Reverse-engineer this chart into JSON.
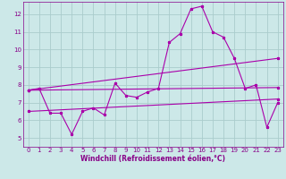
{
  "xlabel": "Windchill (Refroidissement éolien,°C)",
  "xlim": [
    -0.5,
    23.5
  ],
  "ylim": [
    4.5,
    12.7
  ],
  "yticks": [
    5,
    6,
    7,
    8,
    9,
    10,
    11,
    12
  ],
  "xticks": [
    0,
    1,
    2,
    3,
    4,
    5,
    6,
    7,
    8,
    9,
    10,
    11,
    12,
    13,
    14,
    15,
    16,
    17,
    18,
    19,
    20,
    21,
    22,
    23
  ],
  "background_color": "#cce8e8",
  "grid_color": "#aacccc",
  "line_color": "#aa00aa",
  "line1_x": [
    0,
    1,
    2,
    3,
    4,
    5,
    6,
    7,
    8,
    9,
    10,
    11,
    12,
    13,
    14,
    15,
    16,
    17,
    18,
    19,
    20,
    21,
    22,
    23
  ],
  "line1_y": [
    7.7,
    7.8,
    6.4,
    6.4,
    5.2,
    6.5,
    6.7,
    6.3,
    8.1,
    7.4,
    7.3,
    7.6,
    7.8,
    10.4,
    10.9,
    12.3,
    12.45,
    11.0,
    10.7,
    9.5,
    7.8,
    8.0,
    5.6,
    7.0
  ],
  "line2_x": [
    0,
    23
  ],
  "line2_y": [
    7.7,
    7.85
  ],
  "line3_x": [
    0,
    23
  ],
  "line3_y": [
    6.5,
    7.2
  ],
  "line4_x": [
    0,
    23
  ],
  "line4_y": [
    7.7,
    9.5
  ],
  "font_color": "#880088",
  "tick_fontsize": 5.0,
  "xlabel_fontsize": 5.5
}
